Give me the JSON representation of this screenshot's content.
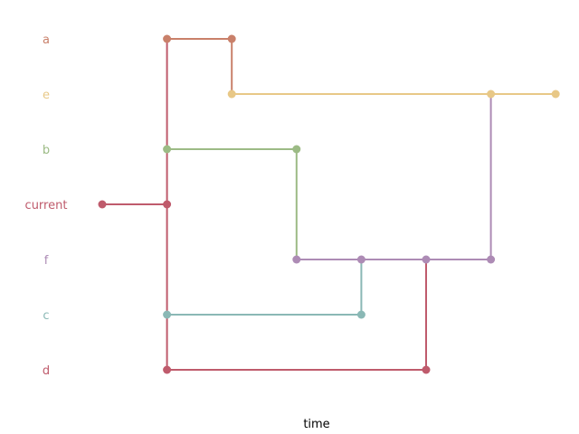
{
  "chart_data": {
    "type": "branch-timeline",
    "xlabel": "time",
    "branches": [
      {
        "name": "a",
        "color": "#c9806a"
      },
      {
        "name": "e",
        "color": "#e8c887"
      },
      {
        "name": "b",
        "color": "#9cbb85"
      },
      {
        "name": "current",
        "color": "#bf5b6c"
      },
      {
        "name": "f",
        "color": "#ad8bb5"
      },
      {
        "name": "c",
        "color": "#8ab8b5"
      },
      {
        "name": "d",
        "color": "#bf5b6c"
      }
    ],
    "commits": [
      {
        "branch": "current",
        "t": 0
      },
      {
        "branch": "current",
        "t": 1
      },
      {
        "branch": "a",
        "t": 1
      },
      {
        "branch": "b",
        "t": 1
      },
      {
        "branch": "c",
        "t": 1
      },
      {
        "branch": "d",
        "t": 1
      },
      {
        "branch": "a",
        "t": 2
      },
      {
        "branch": "e",
        "t": 2
      },
      {
        "branch": "b",
        "t": 3
      },
      {
        "branch": "f",
        "t": 3
      },
      {
        "branch": "c",
        "t": 4
      },
      {
        "branch": "f",
        "t": 4
      },
      {
        "branch": "d",
        "t": 5
      },
      {
        "branch": "f",
        "t": 5
      },
      {
        "branch": "e",
        "t": 6
      },
      {
        "branch": "f",
        "t": 6
      },
      {
        "branch": "e",
        "t": 7
      }
    ],
    "edges": [
      {
        "from": [
          "current",
          0
        ],
        "to": [
          "current",
          1
        ],
        "color": "#bf5b6c"
      },
      {
        "from": [
          "current",
          1
        ],
        "to": [
          "a",
          1
        ],
        "color": "#bf5b6c"
      },
      {
        "from": [
          "current",
          1
        ],
        "to": [
          "d",
          1
        ],
        "color": "#bf5b6c"
      },
      {
        "from": [
          "a",
          1
        ],
        "to": [
          "a",
          2
        ],
        "color": "#c9806a"
      },
      {
        "from": [
          "a",
          2
        ],
        "to": [
          "e",
          2
        ],
        "color": "#c9806a"
      },
      {
        "from": [
          "e",
          2
        ],
        "to": [
          "e",
          7
        ],
        "color": "#e8c887"
      },
      {
        "from": [
          "b",
          1
        ],
        "to": [
          "b",
          3
        ],
        "color": "#9cbb85"
      },
      {
        "from": [
          "b",
          3
        ],
        "to": [
          "f",
          3
        ],
        "color": "#9cbb85"
      },
      {
        "from": [
          "f",
          3
        ],
        "to": [
          "f",
          6
        ],
        "color": "#ad8bb5"
      },
      {
        "from": [
          "f",
          6
        ],
        "to": [
          "e",
          6
        ],
        "color": "#ad8bb5"
      },
      {
        "from": [
          "c",
          1
        ],
        "to": [
          "c",
          4
        ],
        "color": "#8ab8b5"
      },
      {
        "from": [
          "c",
          4
        ],
        "to": [
          "f",
          4
        ],
        "color": "#8ab8b5"
      },
      {
        "from": [
          "d",
          1
        ],
        "to": [
          "d",
          5
        ],
        "color": "#bf5b6c"
      },
      {
        "from": [
          "d",
          5
        ],
        "to": [
          "f",
          5
        ],
        "color": "#bf5b6c"
      }
    ]
  }
}
